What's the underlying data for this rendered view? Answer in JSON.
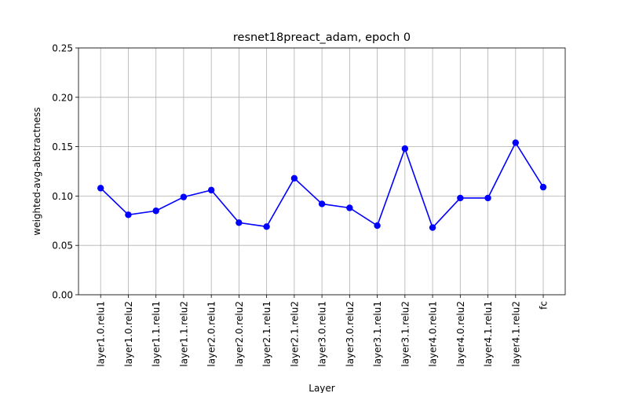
{
  "chart_data": {
    "type": "line",
    "title": "resnet18preact_adam, epoch 0",
    "xlabel": "Layer",
    "ylabel": "weighted-avg-abstractness",
    "ylim": [
      0.0,
      0.25
    ],
    "yticks": [
      "0.00",
      "0.05",
      "0.10",
      "0.15",
      "0.20",
      "0.25"
    ],
    "grid": true,
    "categories": [
      "layer1.0.relu1",
      "layer1.0.relu2",
      "layer1.1.relu1",
      "layer1.1.relu2",
      "layer2.0.relu1",
      "layer2.0.relu2",
      "layer2.1.relu1",
      "layer2.1.relu2",
      "layer3.0.relu1",
      "layer3.0.relu2",
      "layer3.1.relu1",
      "layer3.1.relu2",
      "layer4.0.relu1",
      "layer4.0.relu2",
      "layer4.1.relu1",
      "layer4.1.relu2",
      "fc"
    ],
    "series": [
      {
        "values": [
          0.108,
          0.081,
          0.085,
          0.099,
          0.106,
          0.073,
          0.069,
          0.118,
          0.092,
          0.088,
          0.07,
          0.148,
          0.068,
          0.098,
          0.098,
          0.154,
          0.109
        ],
        "color": "#0000ff",
        "marker": "circle"
      }
    ]
  }
}
